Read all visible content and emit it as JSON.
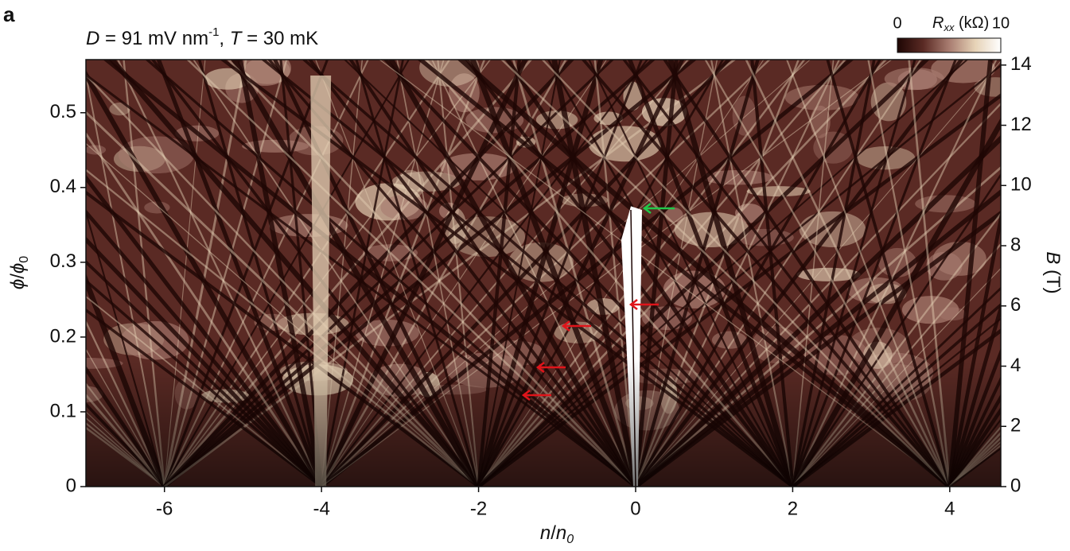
{
  "chart_data": {
    "type": "heatmap",
    "panel_label": "a",
    "title_parts": [
      "D",
      " = 91 mV nm",
      "-1",
      ", ",
      "T",
      " = 30 mK"
    ],
    "x_label_parts": [
      "n",
      "/",
      "n",
      "0"
    ],
    "y_label_parts": [
      "ϕ",
      "/",
      "ϕ",
      "0"
    ],
    "y2_label_parts": [
      "B",
      " (T)"
    ],
    "colorbar": {
      "label_parts": [
        "R",
        "xx",
        " (kΩ)"
      ],
      "clim": [
        0,
        10
      ],
      "ticks": [
        0,
        10
      ],
      "colors": [
        "#1e0604",
        "#5a2a24",
        "#a87c70",
        "#e6d2b6",
        "#ffffff"
      ]
    },
    "xlim": [
      -7,
      4.65
    ],
    "xticks": [
      -6,
      -4,
      -2,
      0,
      2,
      4
    ],
    "ylim": [
      0,
      0.571
    ],
    "yticks": [
      0,
      0.1,
      0.2,
      0.3,
      0.4,
      0.5
    ],
    "y2lim": [
      0,
      14.18
    ],
    "y2ticks": [
      0,
      2,
      4,
      6,
      8,
      10,
      12,
      14
    ]
  }
}
